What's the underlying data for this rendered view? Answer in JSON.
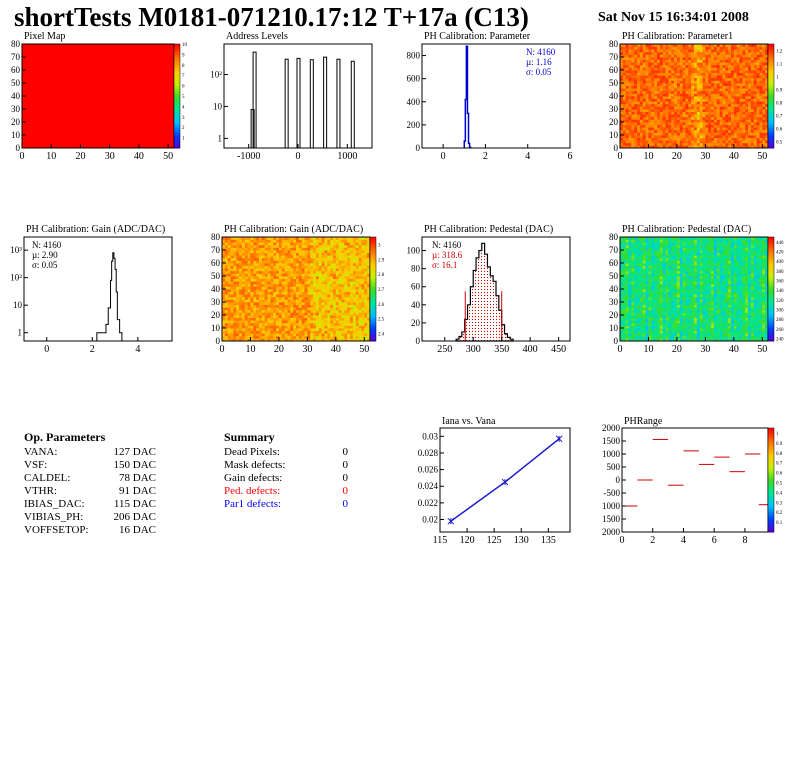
{
  "header": {
    "title": "shortTests M0181-071210.17:12 T+17a (C13)",
    "date": "Sat Nov 15 16:34:01 2008"
  },
  "colors": {
    "stats_blue": "#0000cc",
    "stats_red": "#cc0000",
    "line_blue": "#1a1acc",
    "hist_hatch": "#cc0000"
  },
  "chart_data": [
    {
      "id": "pixel-map",
      "type": "heatmap",
      "title": "Pixel Map",
      "xlim": [
        0,
        52
      ],
      "ylim": [
        0,
        80
      ],
      "x_ticks": [
        "0",
        "10",
        "20",
        "30",
        "40",
        "50"
      ],
      "y_ticks": [
        "0",
        "10",
        "20",
        "30",
        "40",
        "50",
        "60",
        "70",
        "80"
      ],
      "z_ticks": [
        "1",
        "2",
        "3",
        "4",
        "5",
        "6",
        "7",
        "8",
        "9",
        "10"
      ],
      "zlim": [
        0,
        10
      ],
      "values_uniform": 10
    },
    {
      "id": "address-levels",
      "type": "bar",
      "title": "Address Levels",
      "log_y": true,
      "xlim": [
        -1500,
        1500
      ],
      "x_ticks": [
        "-1000",
        "0",
        "1000"
      ],
      "y_ticks": [
        "1",
        "10",
        "10²"
      ],
      "peaks": [
        {
          "x": -920,
          "y": 8
        },
        {
          "x": -880,
          "y": 500
        },
        {
          "x": -230,
          "y": 300
        },
        {
          "x": 10,
          "y": 320
        },
        {
          "x": 280,
          "y": 290
        },
        {
          "x": 550,
          "y": 350
        },
        {
          "x": 820,
          "y": 300
        },
        {
          "x": 1110,
          "y": 260
        }
      ]
    },
    {
      "id": "ph-cal-parameter",
      "type": "bar",
      "title": "PH Calibration: Parameter",
      "xlim": [
        -1,
        6
      ],
      "ylim": [
        0,
        900
      ],
      "x_ticks": [
        "0",
        "2",
        "4",
        "6"
      ],
      "y_ticks": [
        "0",
        "200",
        "400",
        "600",
        "800"
      ],
      "stats": {
        "N": "N: 4160",
        "mean": "µ: 1.16",
        "sigma": "σ: 0.05"
      },
      "bins_x": [
        1.0,
        1.05,
        1.1,
        1.15,
        1.2,
        1.25,
        1.3
      ],
      "bins_y": [
        60,
        420,
        880,
        300,
        40,
        5
      ]
    },
    {
      "id": "ph-cal-parameter1",
      "type": "heatmap",
      "title": "PH Calibration: Parameter1",
      "xlim": [
        0,
        52
      ],
      "ylim": [
        0,
        80
      ],
      "x_ticks": [
        "0",
        "10",
        "20",
        "30",
        "40",
        "50"
      ],
      "y_ticks": [
        "0",
        "10",
        "20",
        "30",
        "40",
        "50",
        "60",
        "70",
        "80"
      ],
      "z_ticks": [
        "0.5",
        "0.6",
        "0.7",
        "0.8",
        "0.9",
        "1",
        "1.1",
        "1.2"
      ],
      "zlim": [
        0.45,
        1.25
      ],
      "base_value": 1.15,
      "low_column": 27
    },
    {
      "id": "ph-cal-gain",
      "type": "bar",
      "title": "PH Calibration: Gain (ADC/DAC)",
      "log_y": true,
      "xlim": [
        -1,
        5.5
      ],
      "x_ticks": [
        "0",
        "2",
        "4"
      ],
      "y_ticks": [
        "1",
        "10",
        "10²",
        "10³"
      ],
      "stats": {
        "N": "N: 4160",
        "mean": "µ: 2.90",
        "sigma": "σ: 0.05"
      },
      "bins_x": [
        2.2,
        2.4,
        2.6,
        2.7,
        2.8,
        2.85,
        2.9,
        2.95,
        3.0,
        3.05,
        3.1,
        3.2,
        3.3
      ],
      "bins_y": [
        1,
        1,
        2,
        8,
        80,
        400,
        800,
        500,
        200,
        30,
        3,
        1
      ]
    },
    {
      "id": "ph-cal-gain-map",
      "type": "heatmap",
      "title": "PH Calibration: Gain (ADC/DAC)",
      "xlim": [
        0,
        52
      ],
      "ylim": [
        0,
        80
      ],
      "x_ticks": [
        "0",
        "10",
        "20",
        "30",
        "40",
        "50"
      ],
      "y_ticks": [
        "0",
        "10",
        "20",
        "30",
        "40",
        "50",
        "60",
        "70",
        "80"
      ],
      "z_ticks": [
        "2.4",
        "2.5",
        "2.6",
        "2.7",
        "2.8",
        "2.9",
        "3"
      ],
      "zlim": [
        2.35,
        3.05
      ],
      "base_value": 2.9
    },
    {
      "id": "ph-cal-pedestal",
      "type": "bar",
      "title": "PH Calibration: Pedestal (DAC)",
      "xlim": [
        210,
        470
      ],
      "ylim": [
        0,
        115
      ],
      "x_ticks": [
        "250",
        "300",
        "350",
        "400",
        "450"
      ],
      "y_ticks": [
        "0",
        "20",
        "40",
        "60",
        "80",
        "100"
      ],
      "stats": {
        "N": "N: 4160",
        "mean": "µ: 318.6",
        "sigma": "σ: 16.1"
      },
      "cut_lines": [
        286,
        350
      ],
      "bins_x": [
        270,
        275,
        280,
        285,
        290,
        295,
        300,
        305,
        310,
        315,
        320,
        325,
        330,
        335,
        340,
        345,
        350,
        355,
        360,
        365,
        370
      ],
      "bins_y": [
        2,
        5,
        10,
        24,
        40,
        60,
        78,
        92,
        100,
        108,
        96,
        82,
        72,
        66,
        50,
        34,
        18,
        8,
        4,
        2
      ]
    },
    {
      "id": "ph-cal-pedestal-map",
      "type": "heatmap",
      "title": "PH Calibration: Pedestal (DAC)",
      "xlim": [
        0,
        52
      ],
      "ylim": [
        0,
        80
      ],
      "x_ticks": [
        "0",
        "10",
        "20",
        "30",
        "40",
        "50"
      ],
      "y_ticks": [
        "0",
        "10",
        "20",
        "30",
        "40",
        "50",
        "60",
        "70",
        "80"
      ],
      "z_ticks": [
        "240",
        "260",
        "280",
        "300",
        "320",
        "340",
        "360",
        "380",
        "400",
        "420",
        "440"
      ],
      "zlim": [
        235,
        450
      ],
      "base_value": 320
    },
    {
      "id": "iana-vs-vana",
      "type": "line",
      "title": "Iana vs. Vana",
      "xlim": [
        115,
        139
      ],
      "ylim": [
        0.0185,
        0.031
      ],
      "x_ticks": [
        "115",
        "120",
        "125",
        "130",
        "135"
      ],
      "y_ticks": [
        "0.02",
        "0.022",
        "0.024",
        "0.026",
        "0.028",
        "0.03"
      ],
      "x": [
        117,
        127,
        137
      ],
      "y": [
        0.0198,
        0.0245,
        0.0297
      ]
    },
    {
      "id": "ph-range",
      "type": "scatter",
      "title": "PHRange",
      "xlim": [
        0,
        9.5
      ],
      "ylim": [
        -2000,
        2000
      ],
      "x_ticks": [
        "0",
        "2",
        "4",
        "6",
        "8"
      ],
      "y_ticks": [
        "2000",
        "1500",
        "1000",
        "500",
        "0",
        "-500",
        "1000",
        "1500",
        "2000"
      ],
      "z_ticks": [
        "0.1",
        "0.2",
        "0.3",
        "0.4",
        "0.5",
        "0.6",
        "0.7",
        "0.8",
        "0.9",
        "1"
      ],
      "zlim": [
        0,
        1.05
      ],
      "segments": [
        {
          "x": 0,
          "y": -1000
        },
        {
          "x": 1,
          "y": 0
        },
        {
          "x": 2,
          "y": 1560
        },
        {
          "x": 3,
          "y": -200
        },
        {
          "x": 4,
          "y": 1120
        },
        {
          "x": 5,
          "y": 600
        },
        {
          "x": 6,
          "y": 880
        },
        {
          "x": 7,
          "y": 320
        },
        {
          "x": 8,
          "y": 1000
        },
        {
          "x": 8.9,
          "y": -950
        }
      ]
    }
  ],
  "op_parameters": {
    "title": "Op. Parameters",
    "rows": [
      {
        "label": "VANA:",
        "value": "127 DAC"
      },
      {
        "label": "VSF:",
        "value": "150 DAC"
      },
      {
        "label": "CALDEL:",
        "value": "78 DAC"
      },
      {
        "label": "VTHR:",
        "value": "91 DAC"
      },
      {
        "label": "IBIAS_DAC:",
        "value": "115 DAC"
      },
      {
        "label": "VIBIAS_PH:",
        "value": "206 DAC"
      },
      {
        "label": "VOFFSETOP:",
        "value": "16 DAC"
      }
    ]
  },
  "summary": {
    "title": "Summary",
    "rows": [
      {
        "label": "Dead Pixels:",
        "value": "0",
        "color": "#000000"
      },
      {
        "label": "Mask defects:",
        "value": "0",
        "color": "#000000"
      },
      {
        "label": "Gain defects:",
        "value": "0",
        "color": "#000000"
      },
      {
        "label": "Ped. defects:",
        "value": "0",
        "color": "#ff0000"
      },
      {
        "label": "Par1 defects:",
        "value": "0",
        "color": "#0000ff"
      }
    ]
  }
}
